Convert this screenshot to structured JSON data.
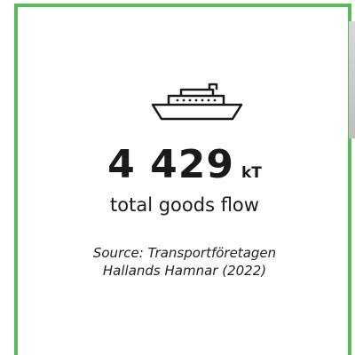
{
  "stat": {
    "value": "4 429",
    "unit": "kT",
    "label": "total goods flow"
  },
  "source": [
    "Source: Transportföretagen",
    "Hallands Hamnar (2022)"
  ]
}
